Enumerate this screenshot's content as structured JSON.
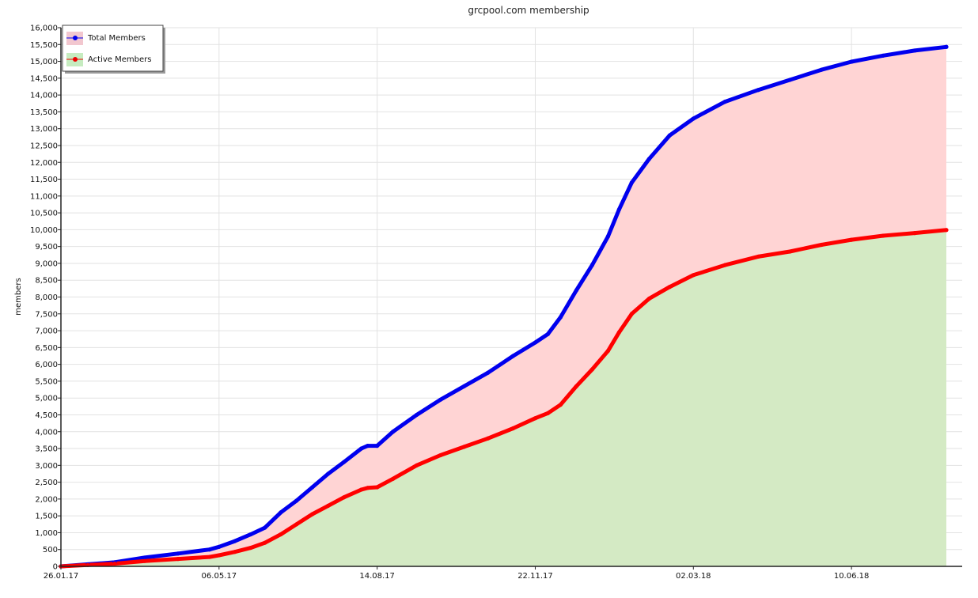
{
  "chart_data": {
    "type": "area",
    "title": "grcpool.com membership",
    "xlabel": "",
    "ylabel": "members",
    "ylim": [
      0,
      16000
    ],
    "y_ticks": [
      0,
      500,
      1000,
      1500,
      2000,
      2500,
      3000,
      3500,
      4000,
      4500,
      5000,
      5500,
      6000,
      6500,
      7000,
      7500,
      8000,
      8500,
      9000,
      9500,
      10000,
      10500,
      11000,
      11500,
      12000,
      12500,
      13000,
      13500,
      14000,
      14500,
      15000,
      15500,
      16000
    ],
    "y_tick_labels": [
      "0",
      "500",
      "1,000",
      "1,500",
      "2,000",
      "2,500",
      "3,000",
      "3,500",
      "4,000",
      "4,500",
      "5,000",
      "5,500",
      "6,000",
      "6,500",
      "7,000",
      "7,500",
      "8,000",
      "8,500",
      "9,000",
      "9,500",
      "10,000",
      "10,500",
      "11,000",
      "11,500",
      "12,000",
      "12,500",
      "13,000",
      "13,500",
      "14,000",
      "14,500",
      "15,000",
      "15,500",
      "16,000"
    ],
    "x_tick_labels": [
      "26.01.17",
      "06.05.17",
      "14.08.17",
      "22.11.17",
      "02.03.18",
      "10.06.18"
    ],
    "xlim": [
      "26.01.17",
      "09.08.18"
    ],
    "grid": true,
    "legend_position": "top-left",
    "series": [
      {
        "name": "Total Members",
        "line_color": "#0000ee",
        "fill_color": "#ffd4d4",
        "x": [
          "26.01.17",
          "12.02.17",
          "01.03.17",
          "20.03.17",
          "10.04.17",
          "30.04.17",
          "06.05.17",
          "16.05.17",
          "26.05.17",
          "04.06.17",
          "14.06.17",
          "24.06.17",
          "04.07.17",
          "14.07.17",
          "24.07.17",
          "04.08.17",
          "08.08.17",
          "14.08.17",
          "24.08.17",
          "08.09.17",
          "23.09.17",
          "08.10.17",
          "23.10.17",
          "08.11.17",
          "22.11.17",
          "30.11.17",
          "08.12.17",
          "18.12.17",
          "28.12.17",
          "07.01.18",
          "14.01.18",
          "22.01.18",
          "02.02.18",
          "15.02.18",
          "02.03.18",
          "22.03.18",
          "12.04.18",
          "02.05.18",
          "22.05.18",
          "10.06.18",
          "30.06.18",
          "20.07.18",
          "09.08.18"
        ],
        "y": [
          0,
          60,
          120,
          260,
          380,
          500,
          580,
          750,
          950,
          1150,
          1600,
          1950,
          2350,
          2750,
          3100,
          3500,
          3580,
          3580,
          4000,
          4500,
          4950,
          5350,
          5750,
          6250,
          6650,
          6900,
          7400,
          8200,
          8950,
          9800,
          10600,
          11400,
          12100,
          12800,
          13300,
          13800,
          14150,
          14450,
          14750,
          14990,
          15170,
          15320,
          15430
        ]
      },
      {
        "name": "Active Members",
        "line_color": "#ff0000",
        "fill_color": "#d4eac4",
        "x": [
          "26.01.17",
          "12.02.17",
          "01.03.17",
          "20.03.17",
          "10.04.17",
          "30.04.17",
          "06.05.17",
          "16.05.17",
          "26.05.17",
          "04.06.17",
          "14.06.17",
          "24.06.17",
          "04.07.17",
          "14.07.17",
          "24.07.17",
          "04.08.17",
          "08.08.17",
          "14.08.17",
          "24.08.17",
          "08.09.17",
          "23.09.17",
          "08.10.17",
          "23.10.17",
          "08.11.17",
          "22.11.17",
          "30.11.17",
          "08.12.17",
          "18.12.17",
          "28.12.17",
          "07.01.18",
          "14.01.18",
          "22.01.18",
          "02.02.18",
          "15.02.18",
          "02.03.18",
          "22.03.18",
          "12.04.18",
          "02.05.18",
          "22.05.18",
          "10.06.18",
          "30.06.18",
          "20.07.18",
          "09.08.18"
        ],
        "y": [
          0,
          40,
          80,
          160,
          220,
          280,
          330,
          430,
          550,
          700,
          950,
          1250,
          1550,
          1800,
          2050,
          2280,
          2330,
          2350,
          2600,
          3000,
          3300,
          3550,
          3800,
          4100,
          4400,
          4550,
          4800,
          5350,
          5850,
          6400,
          6950,
          7500,
          7950,
          8300,
          8650,
          8950,
          9200,
          9350,
          9550,
          9700,
          9820,
          9900,
          9990
        ]
      }
    ]
  }
}
